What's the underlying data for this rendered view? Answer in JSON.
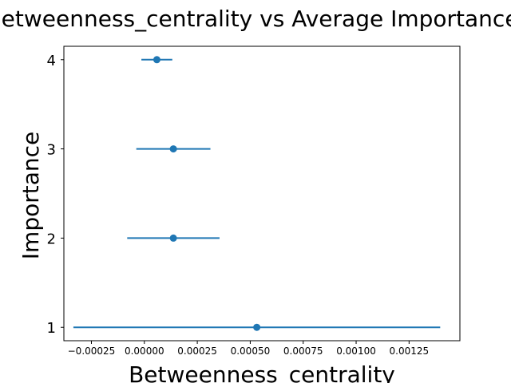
{
  "chart_data": {
    "type": "scatter",
    "title": "Betweenness_centrality vs Average Importance",
    "xlabel": "Betweenness_centrality",
    "ylabel": "Importance",
    "xlim": [
      -0.00038,
      0.00149
    ],
    "ylim": [
      0.85,
      4.15
    ],
    "xticks": [
      -0.00025,
      0.0,
      0.00025,
      0.0005,
      0.00075,
      0.001,
      0.00125
    ],
    "xtick_labels": [
      "−0.00025",
      "0.00000",
      "0.00025",
      "0.00050",
      "0.00075",
      "0.00100",
      "0.00125"
    ],
    "yticks": [
      1,
      2,
      3,
      4
    ],
    "ytick_labels": [
      "1",
      "2",
      "3",
      "4"
    ],
    "grid": false,
    "series": [
      {
        "color": "#1f77b4",
        "points": [
          {
            "y": 1,
            "x": 0.000531,
            "xerr_low": -0.000335,
            "xerr_high": 0.001397
          },
          {
            "y": 2,
            "x": 0.000137,
            "xerr_low": -8.1e-05,
            "xerr_high": 0.000355
          },
          {
            "y": 3,
            "x": 0.000137,
            "xerr_low": -3.8e-05,
            "xerr_high": 0.000312
          },
          {
            "y": 4,
            "x": 5.9e-05,
            "xerr_low": -1.4e-05,
            "xerr_high": 0.000132
          }
        ]
      }
    ]
  }
}
